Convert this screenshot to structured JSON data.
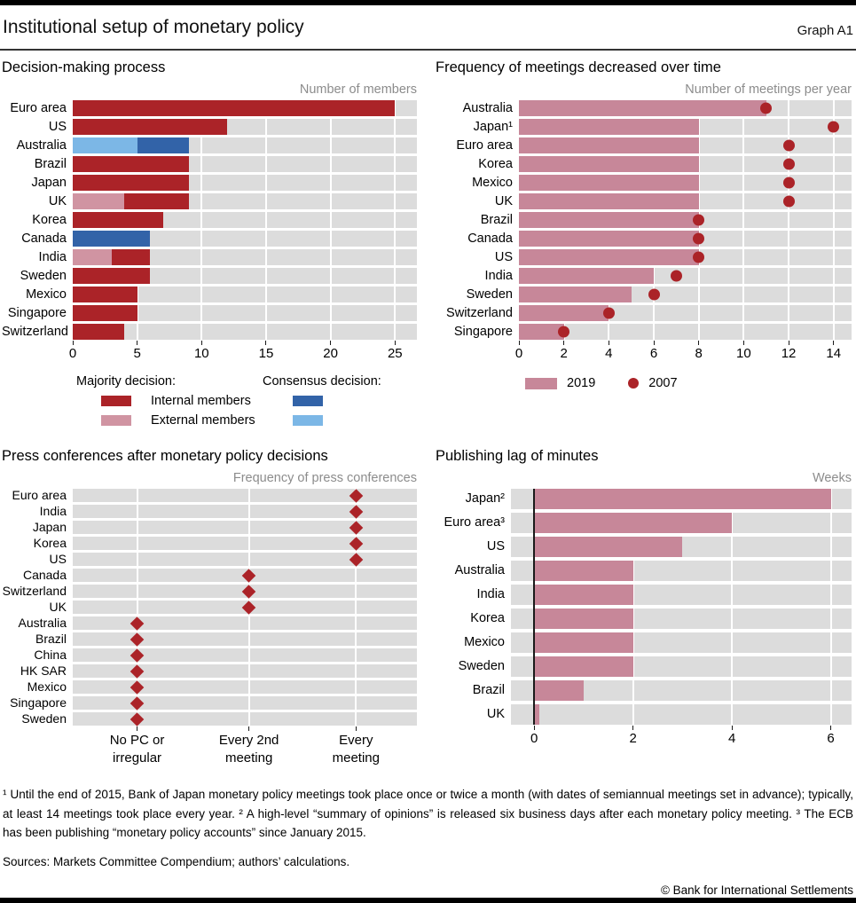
{
  "header": {
    "title": "Institutional setup of monetary policy",
    "graph_label": "Graph A1"
  },
  "colors": {
    "majority_internal": "#ab2328",
    "majority_external": "#d094a2",
    "consensus_internal": "#3263a8",
    "consensus_external": "#7cb7e6",
    "bar_2019": "#c78799",
    "dot_2007": "#ab2328",
    "diamond": "#ab2328",
    "lag_bar": "#c78799",
    "band_gray": "#dcdcdc"
  },
  "chart_data": [
    {
      "id": "decision_making_process",
      "type": "stacked_bar",
      "title": "Decision-making process",
      "unit_label": "Number of members",
      "xlim": [
        0,
        26.7
      ],
      "xticks": [
        0,
        5,
        10,
        15,
        20,
        25
      ],
      "rows": [
        {
          "label": "Euro area",
          "segments": [
            {
              "key": "majority_internal",
              "value": 25
            }
          ]
        },
        {
          "label": "US",
          "segments": [
            {
              "key": "majority_internal",
              "value": 12
            }
          ]
        },
        {
          "label": "Australia",
          "segments": [
            {
              "key": "consensus_external",
              "value": 5
            },
            {
              "key": "consensus_internal",
              "value": 4
            }
          ]
        },
        {
          "label": "Brazil",
          "segments": [
            {
              "key": "majority_internal",
              "value": 9
            }
          ]
        },
        {
          "label": "Japan",
          "segments": [
            {
              "key": "majority_internal",
              "value": 9
            }
          ]
        },
        {
          "label": "UK",
          "segments": [
            {
              "key": "majority_external",
              "value": 4
            },
            {
              "key": "majority_internal",
              "value": 5
            }
          ]
        },
        {
          "label": "Korea",
          "segments": [
            {
              "key": "majority_internal",
              "value": 7
            }
          ]
        },
        {
          "label": "Canada",
          "segments": [
            {
              "key": "consensus_internal",
              "value": 6
            }
          ]
        },
        {
          "label": "India",
          "segments": [
            {
              "key": "majority_external",
              "value": 3
            },
            {
              "key": "majority_internal",
              "value": 3
            }
          ]
        },
        {
          "label": "Sweden",
          "segments": [
            {
              "key": "majority_internal",
              "value": 6
            }
          ]
        },
        {
          "label": "Mexico",
          "segments": [
            {
              "key": "majority_internal",
              "value": 5
            }
          ]
        },
        {
          "label": "Singapore",
          "segments": [
            {
              "key": "majority_internal",
              "value": 5
            }
          ]
        },
        {
          "label": "Switzerland",
          "segments": [
            {
              "key": "majority_internal",
              "value": 4
            }
          ]
        }
      ],
      "legend": {
        "majority_heading": "Majority decision:",
        "consensus_heading": "Consensus decision:",
        "rows": [
          {
            "label": "Internal members"
          },
          {
            "label": "External members"
          }
        ]
      }
    },
    {
      "id": "frequency_of_meetings",
      "type": "bar_dot",
      "title": "Frequency of meetings decreased over time",
      "unit_label": "Number of meetings per year",
      "xlim": [
        0,
        14.8
      ],
      "xticks": [
        0,
        2,
        4,
        6,
        8,
        10,
        12,
        14
      ],
      "bar_key": "bar_2019",
      "dot_key": "dot_2007",
      "rows": [
        {
          "label": "Australia",
          "bar": 11,
          "dot": 11
        },
        {
          "label": "Japan¹",
          "bar": 8,
          "dot": 14
        },
        {
          "label": "Euro area",
          "bar": 8,
          "dot": 12
        },
        {
          "label": "Korea",
          "bar": 8,
          "dot": 12
        },
        {
          "label": "Mexico",
          "bar": 8,
          "dot": 12
        },
        {
          "label": "UK",
          "bar": 8,
          "dot": 12
        },
        {
          "label": "Brazil",
          "bar": 8,
          "dot": 8
        },
        {
          "label": "Canada",
          "bar": 8,
          "dot": 8
        },
        {
          "label": "US",
          "bar": 8,
          "dot": 8
        },
        {
          "label": "India",
          "bar": 6,
          "dot": 7
        },
        {
          "label": "Sweden",
          "bar": 5,
          "dot": 6
        },
        {
          "label": "Switzerland",
          "bar": 4,
          "dot": 4
        },
        {
          "label": "Singapore",
          "bar": 2,
          "dot": 2
        }
      ],
      "legend": {
        "bar_label": "2019",
        "dot_label": "2007"
      }
    },
    {
      "id": "press_conferences",
      "type": "categorical_dot",
      "title": "Press conferences after monetary policy decisions",
      "unit_label": "Frequency of press conferences",
      "categories": [
        "No PC or\nirregular",
        "Every 2nd\nmeeting",
        "Every\nmeeting"
      ],
      "cat_fractions": [
        0.187,
        0.512,
        0.823
      ],
      "marker_key": "diamond",
      "rows": [
        {
          "label": "Euro area",
          "category": 2
        },
        {
          "label": "India",
          "category": 2
        },
        {
          "label": "Japan",
          "category": 2
        },
        {
          "label": "Korea",
          "category": 2
        },
        {
          "label": "US",
          "category": 2
        },
        {
          "label": "Canada",
          "category": 1
        },
        {
          "label": "Switzerland",
          "category": 1
        },
        {
          "label": "UK",
          "category": 1
        },
        {
          "label": "Australia",
          "category": 0
        },
        {
          "label": "Brazil",
          "category": 0
        },
        {
          "label": "China",
          "category": 0
        },
        {
          "label": "HK SAR",
          "category": 0
        },
        {
          "label": "Mexico",
          "category": 0
        },
        {
          "label": "Singapore",
          "category": 0
        },
        {
          "label": "Sweden",
          "category": 0
        }
      ]
    },
    {
      "id": "publishing_lag_of_minutes",
      "type": "bar",
      "title": "Publishing lag of minutes",
      "unit_label": "Weeks",
      "xlim": [
        -0.47,
        6.42
      ],
      "xticks": [
        0,
        2,
        4,
        6
      ],
      "bar_key": "lag_bar",
      "zero_line": true,
      "rows": [
        {
          "label": "Japan²",
          "value": 6
        },
        {
          "label": "Euro area³",
          "value": 4
        },
        {
          "label": "US",
          "value": 3
        },
        {
          "label": "Australia",
          "value": 2
        },
        {
          "label": "India",
          "value": 2
        },
        {
          "label": "Korea",
          "value": 2
        },
        {
          "label": "Mexico",
          "value": 2
        },
        {
          "label": "Sweden",
          "value": 2
        },
        {
          "label": "Brazil",
          "value": 1
        },
        {
          "label": "UK",
          "value": 0.1
        }
      ]
    }
  ],
  "footnotes": {
    "text": "¹  Until the end of 2015, Bank of Japan monetary policy meetings took place once or twice a month (with dates of semiannual meetings set in advance); typically, at least 14 meetings took place every year.   ²  A high-level “summary of opinions” is released six business days after each monetary policy meeting.   ³  The ECB has been publishing “monetary policy accounts” since January 2015.",
    "sources": "Sources: Markets Committee Compendium; authors’ calculations."
  },
  "footer": {
    "copyright": "© Bank for International Settlements"
  }
}
